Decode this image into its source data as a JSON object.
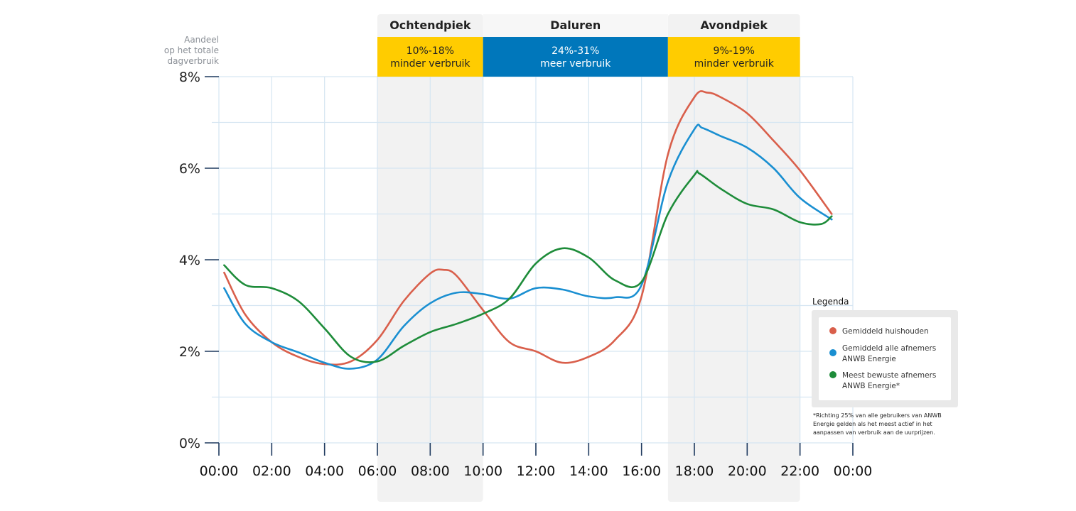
{
  "chart_data": {
    "type": "line",
    "yaxis_title": [
      "Aandeel",
      "op het totale",
      "dagverbruik"
    ],
    "ylim": [
      0,
      8
    ],
    "yticks": [
      "0%",
      "2%",
      "4%",
      "6%",
      "8%"
    ],
    "ytick_values": [
      0,
      2,
      4,
      6,
      8
    ],
    "xlim": [
      0,
      24
    ],
    "xticks": [
      "00:00",
      "02:00",
      "04:00",
      "06:00",
      "08:00",
      "10:00",
      "12:00",
      "14:00",
      "16:00",
      "18:00",
      "20:00",
      "22:00",
      "00:00"
    ],
    "xtick_values": [
      0,
      2,
      4,
      6,
      8,
      10,
      12,
      14,
      16,
      18,
      20,
      22,
      24
    ],
    "periods": [
      {
        "name": "Ochtendpiek",
        "from": 6,
        "to": 10,
        "line1": "10%-18%",
        "line2": "minder verbruik",
        "box_color": "#ffcc00",
        "text_color": "#222222",
        "shaded": true
      },
      {
        "name": "Daluren",
        "from": 10,
        "to": 17,
        "line1": "24%-31%",
        "line2": "meer verbruik",
        "box_color": "#0077bb",
        "text_color": "#ffffff",
        "shaded": false
      },
      {
        "name": "Avondpiek",
        "from": 17,
        "to": 22,
        "line1": "9%-19%",
        "line2": "minder verbruik",
        "box_color": "#ffcc00",
        "text_color": "#222222",
        "shaded": true
      }
    ],
    "series": [
      {
        "name": "Gemiddeld huishouden",
        "color": "#d95f4b",
        "x": [
          0.2,
          1,
          2,
          3,
          4,
          5,
          6,
          7,
          8,
          8.5,
          9,
          10,
          11,
          12,
          13,
          14,
          15,
          16,
          17,
          18,
          18.5,
          19,
          20,
          21,
          22,
          23.2
        ],
        "values": [
          3.72,
          2.8,
          2.2,
          1.88,
          1.72,
          1.78,
          2.25,
          3.1,
          3.7,
          3.78,
          3.65,
          2.9,
          2.2,
          2.0,
          1.75,
          1.88,
          2.25,
          3.2,
          6.3,
          7.55,
          7.65,
          7.55,
          7.2,
          6.6,
          5.95,
          5.0
        ]
      },
      {
        "name": "Gemiddeld alle afnemers ANWB Energie",
        "color": "#1a8fd1",
        "x": [
          0.2,
          1,
          2,
          3,
          4,
          5,
          6,
          7,
          8,
          9,
          10,
          11,
          12,
          13,
          14,
          15,
          16,
          17,
          18,
          18.3,
          19,
          20,
          21,
          22,
          23.2
        ],
        "values": [
          3.38,
          2.6,
          2.2,
          1.98,
          1.75,
          1.62,
          1.82,
          2.55,
          3.05,
          3.28,
          3.25,
          3.15,
          3.38,
          3.35,
          3.2,
          3.18,
          3.45,
          5.7,
          6.85,
          6.88,
          6.7,
          6.45,
          6.0,
          5.35,
          4.88
        ]
      },
      {
        "name": "Meest bewuste afnemers ANWB Energie*",
        "color": "#1e8c3a",
        "x": [
          0.2,
          1,
          2,
          3,
          4,
          5,
          6,
          7,
          8,
          9,
          10,
          11,
          12,
          13,
          14,
          15,
          16,
          17,
          18,
          18.2,
          19,
          20,
          21,
          22,
          22.8,
          23.2
        ],
        "values": [
          3.88,
          3.45,
          3.38,
          3.1,
          2.5,
          1.88,
          1.78,
          2.12,
          2.42,
          2.6,
          2.82,
          3.15,
          3.92,
          4.25,
          4.05,
          3.55,
          3.52,
          5.0,
          5.85,
          5.88,
          5.55,
          5.22,
          5.1,
          4.82,
          4.78,
          4.95
        ]
      }
    ],
    "legend_title": "Legenda",
    "legend_position": "right",
    "footnote": [
      "*Richting 25% van alle gebruikers van ANWB",
      "Energie gelden als het meest actief in het",
      "aanpassen van verbruik aan de uurprijzen."
    ]
  }
}
